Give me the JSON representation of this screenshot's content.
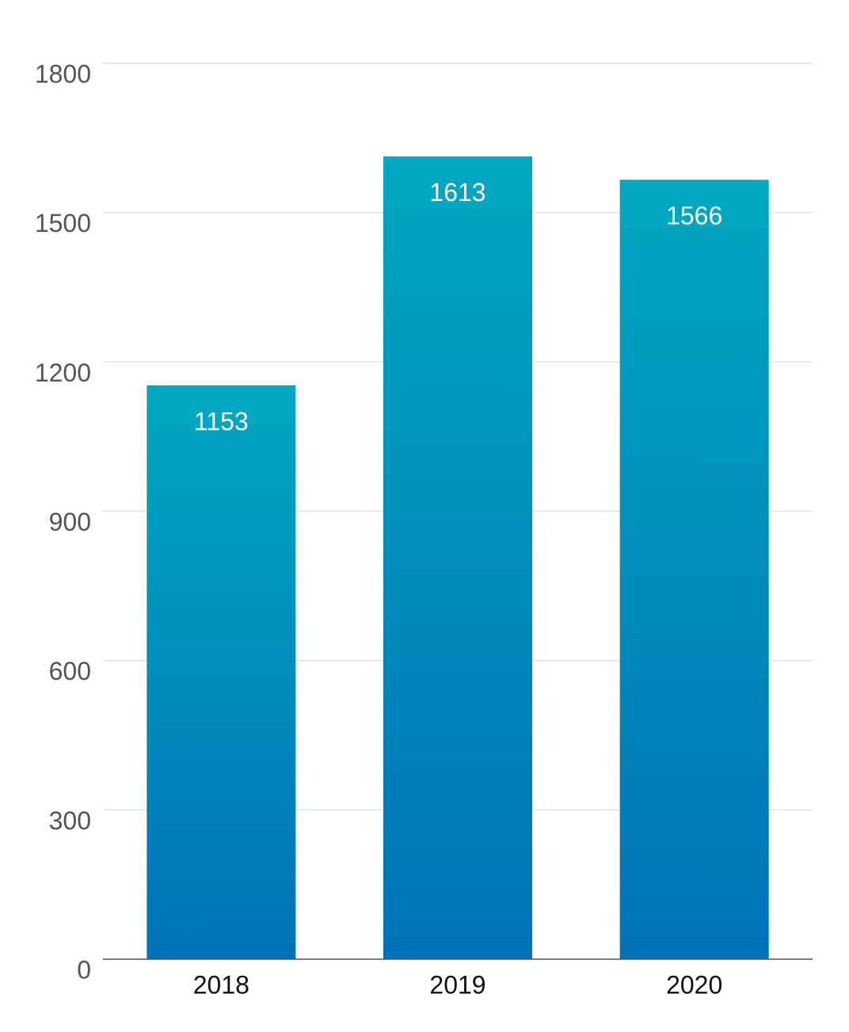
{
  "chart_data": {
    "type": "bar",
    "categories": [
      "2018",
      "2019",
      "2020"
    ],
    "values": [
      1153,
      1613,
      1566
    ],
    "gradient": [
      "#00a8c0",
      "#0072b7"
    ],
    "ylim": [
      0,
      1800
    ],
    "yticks": [
      0,
      300,
      600,
      900,
      1200,
      1500,
      1800
    ],
    "grid": true
  }
}
